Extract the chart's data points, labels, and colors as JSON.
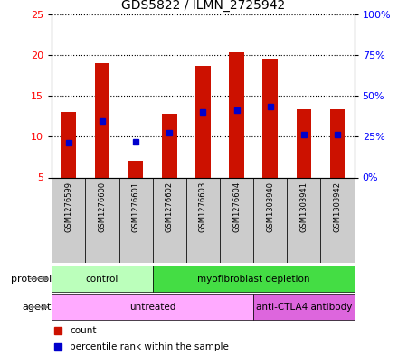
{
  "title": "GDS5822 / ILMN_2725942",
  "samples": [
    "GSM1276599",
    "GSM1276600",
    "GSM1276601",
    "GSM1276602",
    "GSM1276603",
    "GSM1276604",
    "GSM1303940",
    "GSM1303941",
    "GSM1303942"
  ],
  "bar_bottom": [
    5,
    5,
    5,
    5,
    5,
    5,
    5,
    5,
    5
  ],
  "bar_top": [
    13.0,
    19.0,
    7.0,
    12.8,
    18.7,
    20.3,
    19.6,
    13.3,
    13.3
  ],
  "percentile_y": [
    9.3,
    11.9,
    9.4,
    10.5,
    13.0,
    13.2,
    13.7,
    10.3,
    10.3
  ],
  "ylim_left": [
    5,
    25
  ],
  "ylim_right": [
    0,
    100
  ],
  "yticks_left": [
    5,
    10,
    15,
    20,
    25
  ],
  "yticks_right": [
    0,
    25,
    50,
    75,
    100
  ],
  "ytick_labels_right": [
    "0%",
    "25%",
    "50%",
    "75%",
    "100%"
  ],
  "bar_color": "#cc1100",
  "percentile_color": "#0000cc",
  "protocol_groups": [
    {
      "label": "control",
      "start": 0,
      "end": 3,
      "color": "#bbffbb"
    },
    {
      "label": "myofibroblast depletion",
      "start": 3,
      "end": 9,
      "color": "#44dd44"
    }
  ],
  "agent_groups": [
    {
      "label": "untreated",
      "start": 0,
      "end": 6,
      "color": "#ffaaff"
    },
    {
      "label": "anti-CTLA4 antibody",
      "start": 6,
      "end": 9,
      "color": "#dd66dd"
    }
  ],
  "sample_box_color": "#cccccc",
  "plot_bg": "#ffffff"
}
